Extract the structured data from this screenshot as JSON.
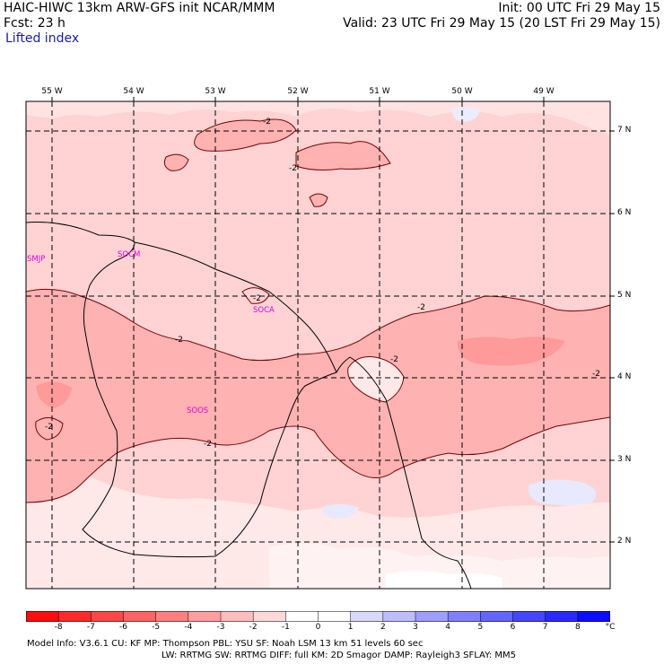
{
  "header": {
    "line1_left": "HAIC-HIWC 13km ARW-GFS init   NCAR/MMM",
    "line2_left": "Fcst:   23 h",
    "field_name": "Lifted index",
    "line1_right": "Init: 00 UTC Fri 29 May 15",
    "line2_right": "Valid: 23 UTC Fri 29 May 15 (20 LST Fri 29 May 15)"
  },
  "map": {
    "longitude_labels": [
      "55 W",
      "54 W",
      "53 W",
      "52 W",
      "51 W",
      "50 W",
      "49 W"
    ],
    "latitude_labels": [
      "7 N",
      "6 N",
      "5 N",
      "4 N",
      "3 N",
      "2 N"
    ],
    "stations": [
      "SMJP",
      "SOCM",
      "SOCA",
      "SOOS"
    ],
    "contour_labels": [
      "-2",
      "-2",
      "-2",
      "-2",
      "-2",
      "-2",
      "-2",
      "-2",
      "-2"
    ]
  },
  "colorbar": {
    "labels": [
      "-8",
      "-7",
      "-6",
      "-5",
      "-4",
      "-3",
      "-2",
      "-1",
      "0",
      "1",
      "2",
      "3",
      "4",
      "5",
      "6",
      "7",
      "8",
      "°C"
    ],
    "colors": [
      "#ff0d0d",
      "#ff2a2a",
      "#ff4646",
      "#ff6464",
      "#ff8080",
      "#ff9e9e",
      "#ffbcbc",
      "#ffd8d8",
      "#ffffff",
      "#ffffff",
      "#d8d8ff",
      "#bcbcff",
      "#9e9eff",
      "#8080ff",
      "#6464ff",
      "#4646ff",
      "#2a2aff",
      "#0d0dff"
    ]
  },
  "footer": {
    "line1": "Model Info: V3.6.1    CU: KF      MP: Thompson     PBL: YSU      SF: Noah LSM      13 km    51 levels   60 sec",
    "line2": "LW: RRTMG    SW: RRTMG  DIFF: full    KM: 2D Smagor DAMP: Rayleigh3  SFLAY: MM5"
  }
}
